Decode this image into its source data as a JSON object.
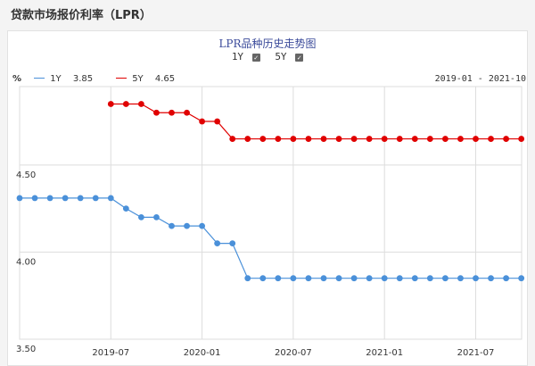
{
  "page": {
    "title": "贷款市场报价利率（LPR）"
  },
  "chart": {
    "title": "LPR品种历史走势图",
    "date_range": "2019-01 - 2021-10",
    "y_unit": "%"
  },
  "toggles": [
    {
      "label": "1Y",
      "checked": true
    },
    {
      "label": "5Y",
      "checked": true
    }
  ],
  "legend": [
    {
      "name": "1Y",
      "value": "3.85",
      "color": "#4a90d9"
    },
    {
      "name": "5Y",
      "value": "4.65",
      "color": "#e00000"
    }
  ],
  "chart_data": {
    "type": "line",
    "title": "LPR品种历史走势图",
    "xlabel": "",
    "ylabel": "%",
    "ylim": [
      3.5,
      4.95
    ],
    "y_ticks": [
      "4.50",
      "4.00",
      "3.50"
    ],
    "x_ticks": [
      "2019-07",
      "2020-01",
      "2020-07",
      "2021-01",
      "2021-07"
    ],
    "x": [
      "2019-01",
      "2019-02",
      "2019-03",
      "2019-04",
      "2019-05",
      "2019-06",
      "2019-07",
      "2019-08",
      "2019-09",
      "2019-10",
      "2019-11",
      "2019-12",
      "2020-01",
      "2020-02",
      "2020-03",
      "2020-04",
      "2020-05",
      "2020-06",
      "2020-07",
      "2020-08",
      "2020-09",
      "2020-10",
      "2020-11",
      "2020-12",
      "2021-01",
      "2021-02",
      "2021-03",
      "2021-04",
      "2021-05",
      "2021-06",
      "2021-07",
      "2021-08",
      "2021-09",
      "2021-10"
    ],
    "grid": true,
    "series": [
      {
        "name": "1Y",
        "color": "#4a90d9",
        "values": [
          4.31,
          4.31,
          4.31,
          4.31,
          4.31,
          4.31,
          4.31,
          4.25,
          4.2,
          4.2,
          4.15,
          4.15,
          4.15,
          4.05,
          4.05,
          3.85,
          3.85,
          3.85,
          3.85,
          3.85,
          3.85,
          3.85,
          3.85,
          3.85,
          3.85,
          3.85,
          3.85,
          3.85,
          3.85,
          3.85,
          3.85,
          3.85,
          3.85,
          3.85
        ]
      },
      {
        "name": "5Y",
        "color": "#e00000",
        "values": [
          null,
          null,
          null,
          null,
          null,
          null,
          4.85,
          4.85,
          4.85,
          4.8,
          4.8,
          4.8,
          4.75,
          4.75,
          4.65,
          4.65,
          4.65,
          4.65,
          4.65,
          4.65,
          4.65,
          4.65,
          4.65,
          4.65,
          4.65,
          4.65,
          4.65,
          4.65,
          4.65,
          4.65,
          4.65,
          4.65,
          4.65,
          4.65
        ]
      }
    ]
  }
}
